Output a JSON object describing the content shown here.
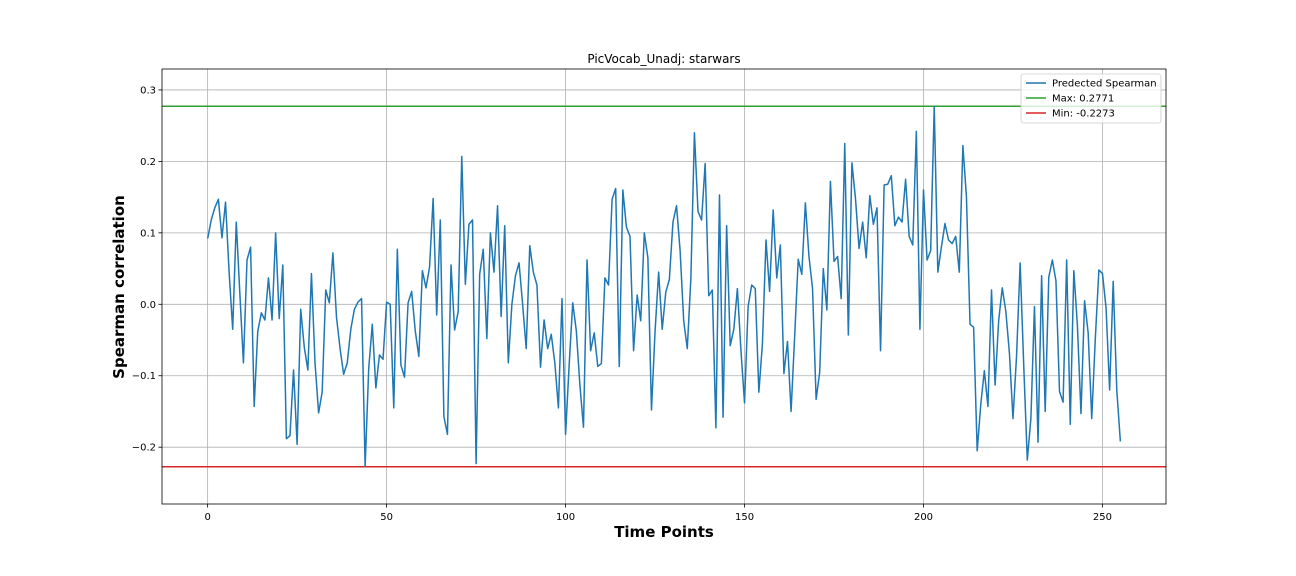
{
  "chart_data": {
    "type": "line",
    "title": "PicVocab_Unadj: starwars",
    "xlabel": "Time Points",
    "ylabel": "Spearman correlation",
    "xlim": [
      -12.75,
      267.75
    ],
    "ylim": [
      -0.2795,
      0.3293
    ],
    "xticks": [
      0,
      50,
      100,
      150,
      200,
      250
    ],
    "xtick_labels": [
      "0",
      "50",
      "100",
      "150",
      "200",
      "250"
    ],
    "yticks": [
      -0.2,
      -0.1,
      0.0,
      0.1,
      0.2,
      0.3
    ],
    "ytick_labels": [
      "−0.2",
      "−0.1",
      "0.0",
      "0.1",
      "0.2",
      "0.3"
    ],
    "grid": true,
    "legend_position": "upper right",
    "series": [
      {
        "name": "Predected Spearman",
        "color": "#1f77b4",
        "x_start": 0,
        "x_step": 1,
        "values": [
          0.092,
          0.118,
          0.135,
          0.147,
          0.093,
          0.143,
          0.045,
          -0.035,
          0.115,
          0.015,
          -0.082,
          0.062,
          0.08,
          -0.143,
          -0.038,
          -0.012,
          -0.022,
          0.037,
          -0.022,
          0.1,
          -0.02,
          0.055,
          -0.188,
          -0.184,
          -0.092,
          -0.196,
          -0.007,
          -0.06,
          -0.092,
          0.043,
          -0.082,
          -0.152,
          -0.123,
          0.02,
          0.002,
          0.072,
          -0.018,
          -0.062,
          -0.098,
          -0.082,
          -0.035,
          -0.007,
          0.003,
          0.008,
          -0.227,
          -0.09,
          -0.028,
          -0.117,
          -0.071,
          -0.077,
          0.003,
          0.0,
          -0.145,
          0.077,
          -0.085,
          -0.102,
          0.002,
          0.018,
          -0.037,
          -0.073,
          0.047,
          0.023,
          0.052,
          0.148,
          -0.015,
          0.118,
          -0.157,
          -0.182,
          0.055,
          -0.036,
          -0.01,
          0.207,
          0.028,
          0.112,
          0.118,
          -0.223,
          0.042,
          0.077,
          -0.048,
          0.1,
          0.045,
          0.138,
          -0.017,
          0.11,
          -0.082,
          0.0,
          0.04,
          0.058,
          0.0,
          -0.062,
          0.082,
          0.045,
          0.027,
          -0.088,
          -0.022,
          -0.062,
          -0.042,
          -0.082,
          -0.145,
          0.008,
          -0.182,
          -0.085,
          0.002,
          -0.037,
          -0.113,
          -0.172,
          0.062,
          -0.065,
          -0.04,
          -0.087,
          -0.083,
          0.037,
          0.027,
          0.147,
          0.162,
          -0.087,
          0.16,
          0.108,
          0.095,
          -0.065,
          0.013,
          -0.023,
          0.1,
          0.065,
          -0.148,
          -0.038,
          0.045,
          -0.035,
          0.017,
          0.035,
          0.115,
          0.138,
          0.075,
          -0.023,
          -0.062,
          0.035,
          0.24,
          0.13,
          0.118,
          0.197,
          0.012,
          0.02,
          -0.173,
          0.153,
          -0.158,
          0.11,
          -0.058,
          -0.035,
          0.022,
          -0.065,
          -0.138,
          -0.003,
          0.027,
          0.022,
          -0.123,
          -0.055,
          0.09,
          0.018,
          0.132,
          0.037,
          0.083,
          -0.097,
          -0.052,
          -0.15,
          -0.045,
          0.063,
          0.042,
          0.142,
          0.067,
          0.022,
          -0.133,
          -0.095,
          0.05,
          -0.008,
          0.172,
          0.06,
          0.067,
          0.008,
          0.225,
          -0.043,
          0.198,
          0.148,
          0.078,
          0.115,
          0.065,
          0.152,
          0.112,
          0.135,
          -0.065,
          0.167,
          0.168,
          0.18,
          0.11,
          0.122,
          0.115,
          0.175,
          0.095,
          0.083,
          0.242,
          -0.035,
          0.16,
          0.062,
          0.075,
          0.277,
          0.045,
          0.08,
          0.113,
          0.09,
          0.085,
          0.095,
          0.045,
          0.222,
          0.15,
          -0.028,
          -0.032,
          -0.205,
          -0.14,
          -0.093,
          -0.143,
          0.02,
          -0.113,
          -0.023,
          0.023,
          -0.01,
          -0.068,
          -0.16,
          -0.072,
          0.058,
          -0.085,
          -0.218,
          -0.16,
          -0.003,
          -0.193,
          0.04,
          -0.15,
          0.038,
          0.062,
          0.033,
          -0.122,
          -0.137,
          0.062,
          -0.168,
          0.047,
          -0.03,
          -0.153,
          0.005,
          -0.04,
          -0.16,
          -0.048,
          0.048,
          0.043,
          -0.005,
          -0.12,
          0.032,
          -0.12,
          -0.192
        ]
      }
    ],
    "hlines": [
      {
        "name": "Max: 0.2771",
        "value": 0.2771,
        "color": "#2ca02c"
      },
      {
        "name": "Min: -0.2273",
        "value": -0.2273,
        "color": "#d62728"
      }
    ]
  }
}
